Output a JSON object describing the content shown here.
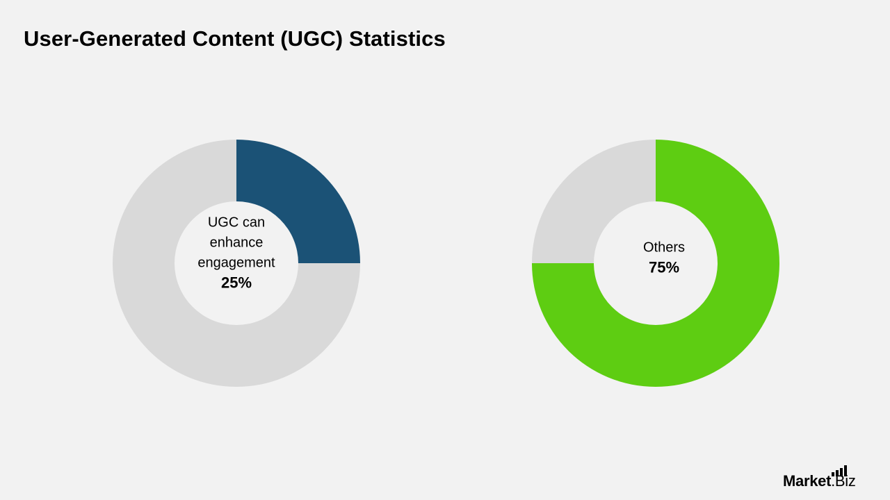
{
  "title": "User-Generated Content (UGC) Statistics",
  "brand": {
    "logo_text": "Market.Biz",
    "bold": "Market",
    "regular": ".Biz"
  },
  "colors": {
    "background": "#f2f2f2",
    "remainder": "#d9d9d9",
    "navy": "#1b5276",
    "green": "#5ecd12"
  },
  "chart_data": [
    {
      "type": "pie",
      "title": "",
      "categories": [
        "UGC can enhance engagement",
        ""
      ],
      "values": [
        25,
        75
      ],
      "center_label_lines": [
        "UGC can",
        "enhance",
        "engagement"
      ],
      "center_value": "25%",
      "colors": [
        "#1b5276",
        "#d9d9d9"
      ]
    },
    {
      "type": "pie",
      "title": "",
      "categories": [
        "Others",
        ""
      ],
      "values": [
        75,
        25
      ],
      "center_label_lines": [
        "Others"
      ],
      "center_value": "75%",
      "colors": [
        "#5ecd12",
        "#d9d9d9"
      ]
    }
  ]
}
